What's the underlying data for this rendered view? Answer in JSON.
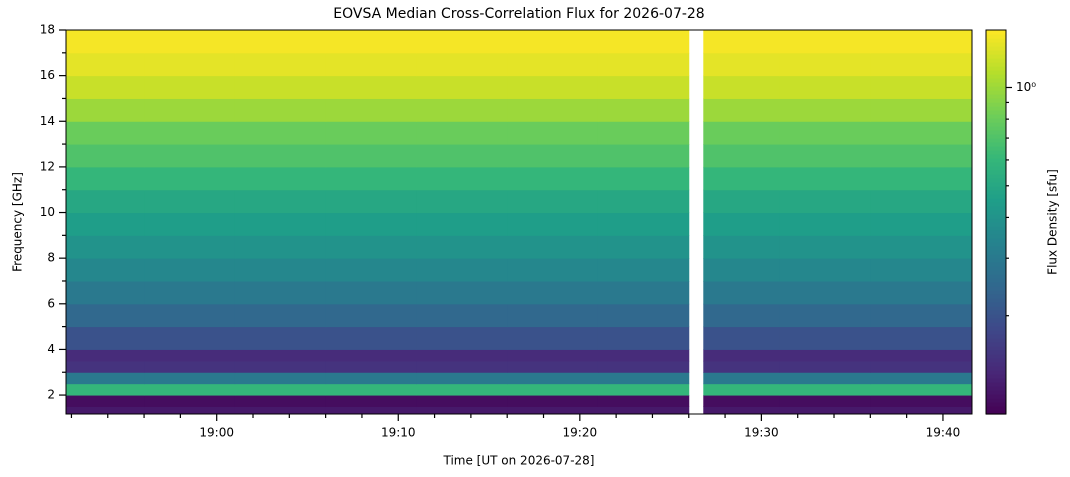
{
  "chart_data": {
    "type": "heatmap",
    "title": "EOVSA Median Cross-Correlation Flux for 2026-07-28",
    "x_label": "Time [UT on 2026-07-28]",
    "y_label": "Frequency [GHz]",
    "colorbar_label": "Flux Density [sfu]",
    "colormap": "viridis",
    "log_color": true,
    "xlim": [
      1131.7,
      1181.6
    ],
    "xticks": [
      {
        "value": 1140,
        "label": "19:00"
      },
      {
        "value": 1150,
        "label": "19:10"
      },
      {
        "value": 1160,
        "label": "19:20"
      },
      {
        "value": 1170,
        "label": "19:30"
      },
      {
        "value": 1180,
        "label": "19:40"
      }
    ],
    "xminorticks": [
      1132,
      1134,
      1136,
      1138,
      1142,
      1144,
      1146,
      1148,
      1152,
      1154,
      1156,
      1158,
      1162,
      1164,
      1166,
      1168,
      1172,
      1174,
      1176,
      1178
    ],
    "ylim": [
      1.17,
      18.0
    ],
    "yticks": [
      2,
      4,
      6,
      8,
      10,
      12,
      14,
      16,
      18
    ],
    "yminorticks": [
      3,
      5,
      7,
      9,
      11,
      13,
      15,
      17
    ],
    "clim": [
      0.1,
      1.5
    ],
    "cticks": [
      {
        "value": 1,
        "label": "10⁰"
      }
    ],
    "cminorticks": [
      0.2,
      0.3,
      0.4,
      0.5,
      0.6,
      0.7,
      0.8,
      0.9
    ],
    "time_edges": [
      1131.7,
      1136,
      1141,
      1146,
      1151,
      1156,
      1161,
      1166,
      1166.8,
      1171,
      1176,
      1181.6
    ],
    "freq_edges": [
      1.17,
      1.5,
      2,
      2.5,
      3,
      3.5,
      4,
      5,
      6,
      7,
      8,
      9,
      10,
      11,
      12,
      13,
      14,
      15,
      16,
      17,
      18
    ],
    "z": [
      [
        0.12,
        0.12,
        0.12,
        0.12,
        0.12,
        0.12,
        0.12,
        null,
        0.12,
        0.12,
        0.12
      ],
      [
        0.11,
        0.11,
        0.11,
        0.11,
        0.11,
        0.11,
        0.11,
        null,
        0.11,
        0.11,
        0.11
      ],
      [
        0.6,
        0.6,
        0.6,
        0.6,
        0.6,
        0.6,
        0.6,
        null,
        0.6,
        0.6,
        0.6
      ],
      [
        0.3,
        0.3,
        0.3,
        0.3,
        0.3,
        0.3,
        0.3,
        null,
        0.3,
        0.3,
        0.3
      ],
      [
        0.15,
        0.15,
        0.15,
        0.15,
        0.15,
        0.15,
        0.15,
        null,
        0.15,
        0.15,
        0.15
      ],
      [
        0.14,
        0.14,
        0.14,
        0.14,
        0.14,
        0.14,
        0.14,
        null,
        0.14,
        0.14,
        0.14
      ],
      [
        0.2,
        0.2,
        0.2,
        0.2,
        0.2,
        0.2,
        0.2,
        null,
        0.2,
        0.2,
        0.2
      ],
      [
        0.25,
        0.25,
        0.25,
        0.25,
        0.25,
        0.25,
        0.25,
        null,
        0.25,
        0.25,
        0.25
      ],
      [
        0.3,
        0.3,
        0.3,
        0.3,
        0.3,
        0.3,
        0.3,
        null,
        0.3,
        0.3,
        0.3
      ],
      [
        0.35,
        0.35,
        0.35,
        0.35,
        0.35,
        0.35,
        0.35,
        null,
        0.35,
        0.35,
        0.35
      ],
      [
        0.4,
        0.4,
        0.4,
        0.4,
        0.4,
        0.4,
        0.4,
        null,
        0.4,
        0.4,
        0.4
      ],
      [
        0.45,
        0.45,
        0.45,
        0.45,
        0.45,
        0.45,
        0.45,
        null,
        0.45,
        0.45,
        0.45
      ],
      [
        0.5,
        0.5,
        0.5,
        0.5,
        0.5,
        0.5,
        0.5,
        null,
        0.5,
        0.5,
        0.5
      ],
      [
        0.6,
        0.6,
        0.6,
        0.6,
        0.6,
        0.6,
        0.6,
        null,
        0.6,
        0.6,
        0.6
      ],
      [
        0.7,
        0.7,
        0.7,
        0.7,
        0.7,
        0.7,
        0.7,
        null,
        0.7,
        0.7,
        0.7
      ],
      [
        0.8,
        0.8,
        0.8,
        0.8,
        0.8,
        0.8,
        0.8,
        null,
        0.8,
        0.8,
        0.8
      ],
      [
        1.0,
        1.0,
        1.0,
        1.0,
        1.0,
        1.0,
        1.0,
        null,
        1.0,
        1.0,
        1.0
      ],
      [
        1.2,
        1.2,
        1.2,
        1.2,
        1.2,
        1.2,
        1.2,
        null,
        1.2,
        1.2,
        1.2
      ],
      [
        1.35,
        1.35,
        1.35,
        1.35,
        1.35,
        1.35,
        1.35,
        null,
        1.35,
        1.35,
        1.35
      ],
      [
        1.45,
        1.45,
        1.45,
        1.45,
        1.45,
        1.45,
        1.45,
        null,
        1.45,
        1.45,
        1.45
      ]
    ]
  }
}
